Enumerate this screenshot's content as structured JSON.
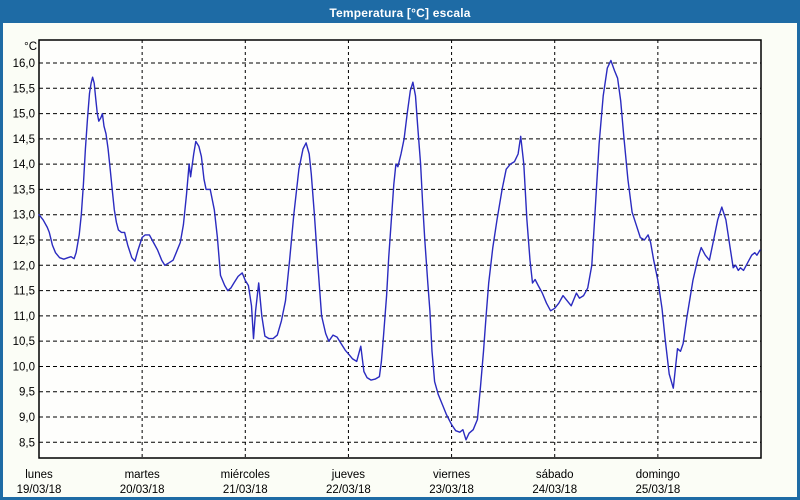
{
  "window": {
    "title": "Temperatura [°C] escala"
  },
  "colors": {
    "titlebar": "#1E6BA5",
    "border": "#1E6BA5",
    "title_text": "#FFFFFF",
    "panel_background": "#FBFDF6",
    "plot_background": "#FEFEFC",
    "grid": "#000000",
    "axis_text": "#000000",
    "line": "#2B2BC0"
  },
  "chart_data": {
    "type": "line",
    "title": "Temperatura [°C] escala",
    "ylabel": "°C",
    "xlabel": "",
    "ylim": [
      8.5,
      16.0
    ],
    "grid": true,
    "legend": "none",
    "decimal_separator": ",",
    "y_ticks": [
      {
        "value": 16.0,
        "label": "16,0"
      },
      {
        "value": 15.5,
        "label": "15,5"
      },
      {
        "value": 15.0,
        "label": "15,0"
      },
      {
        "value": 14.5,
        "label": "14,5"
      },
      {
        "value": 14.0,
        "label": "14,0"
      },
      {
        "value": 13.5,
        "label": "13,5"
      },
      {
        "value": 13.0,
        "label": "13,0"
      },
      {
        "value": 12.5,
        "label": "12,5"
      },
      {
        "value": 12.0,
        "label": "12,0"
      },
      {
        "value": 11.5,
        "label": "11,5"
      },
      {
        "value": 11.0,
        "label": "11,0"
      },
      {
        "value": 10.5,
        "label": "10,5"
      },
      {
        "value": 10.0,
        "label": "10,0"
      },
      {
        "value": 9.5,
        "label": "9,5"
      },
      {
        "value": 9.0,
        "label": "9,0"
      },
      {
        "value": 8.5,
        "label": "8,5"
      }
    ],
    "x_days": [
      {
        "name": "lunes",
        "date": "19/03/18"
      },
      {
        "name": "martes",
        "date": "20/03/18"
      },
      {
        "name": "miércoles",
        "date": "21/03/18"
      },
      {
        "name": "jueves",
        "date": "22/03/18"
      },
      {
        "name": "viernes",
        "date": "23/03/18"
      },
      {
        "name": "sábado",
        "date": "24/03/18"
      },
      {
        "name": "domingo",
        "date": "25/03/18"
      }
    ],
    "series": [
      {
        "name": "Temperatura",
        "unit": "°C",
        "points": [
          [
            0.0,
            13.0
          ],
          [
            0.04,
            12.9
          ],
          [
            0.08,
            12.75
          ],
          [
            0.1,
            12.65
          ],
          [
            0.13,
            12.4
          ],
          [
            0.16,
            12.25
          ],
          [
            0.2,
            12.15
          ],
          [
            0.24,
            12.12
          ],
          [
            0.28,
            12.15
          ],
          [
            0.31,
            12.17
          ],
          [
            0.34,
            12.13
          ],
          [
            0.36,
            12.25
          ],
          [
            0.39,
            12.6
          ],
          [
            0.41,
            13.0
          ],
          [
            0.43,
            13.6
          ],
          [
            0.45,
            14.3
          ],
          [
            0.47,
            14.9
          ],
          [
            0.49,
            15.4
          ],
          [
            0.505,
            15.6
          ],
          [
            0.52,
            15.72
          ],
          [
            0.535,
            15.6
          ],
          [
            0.55,
            15.3
          ],
          [
            0.565,
            15.0
          ],
          [
            0.58,
            14.85
          ],
          [
            0.6,
            14.92
          ],
          [
            0.615,
            15.0
          ],
          [
            0.63,
            14.75
          ],
          [
            0.65,
            14.6
          ],
          [
            0.67,
            14.3
          ],
          [
            0.69,
            13.9
          ],
          [
            0.71,
            13.5
          ],
          [
            0.73,
            13.1
          ],
          [
            0.75,
            12.85
          ],
          [
            0.77,
            12.7
          ],
          [
            0.8,
            12.65
          ],
          [
            0.83,
            12.65
          ],
          [
            0.86,
            12.4
          ],
          [
            0.9,
            12.15
          ],
          [
            0.93,
            12.08
          ],
          [
            0.96,
            12.3
          ],
          [
            1.0,
            12.55
          ],
          [
            1.03,
            12.6
          ],
          [
            1.07,
            12.6
          ],
          [
            1.11,
            12.45
          ],
          [
            1.15,
            12.3
          ],
          [
            1.19,
            12.1
          ],
          [
            1.22,
            12.0
          ],
          [
            1.26,
            12.05
          ],
          [
            1.3,
            12.1
          ],
          [
            1.33,
            12.25
          ],
          [
            1.37,
            12.45
          ],
          [
            1.4,
            12.8
          ],
          [
            1.43,
            13.4
          ],
          [
            1.455,
            14.0
          ],
          [
            1.47,
            13.75
          ],
          [
            1.5,
            14.2
          ],
          [
            1.52,
            14.45
          ],
          [
            1.55,
            14.35
          ],
          [
            1.575,
            14.15
          ],
          [
            1.6,
            13.7
          ],
          [
            1.62,
            13.5
          ],
          [
            1.66,
            13.5
          ],
          [
            1.7,
            13.1
          ],
          [
            1.73,
            12.55
          ],
          [
            1.76,
            11.8
          ],
          [
            1.8,
            11.6
          ],
          [
            1.83,
            11.5
          ],
          [
            1.86,
            11.55
          ],
          [
            1.89,
            11.65
          ],
          [
            1.93,
            11.78
          ],
          [
            1.97,
            11.85
          ],
          [
            2.0,
            11.7
          ],
          [
            2.03,
            11.6
          ],
          [
            2.06,
            11.2
          ],
          [
            2.08,
            10.55
          ],
          [
            2.1,
            11.1
          ],
          [
            2.13,
            11.65
          ],
          [
            2.16,
            11.0
          ],
          [
            2.19,
            10.6
          ],
          [
            2.23,
            10.55
          ],
          [
            2.27,
            10.55
          ],
          [
            2.31,
            10.62
          ],
          [
            2.35,
            10.9
          ],
          [
            2.39,
            11.3
          ],
          [
            2.43,
            12.1
          ],
          [
            2.47,
            13.0
          ],
          [
            2.52,
            13.9
          ],
          [
            2.56,
            14.3
          ],
          [
            2.59,
            14.42
          ],
          [
            2.62,
            14.2
          ],
          [
            2.64,
            13.8
          ],
          [
            2.67,
            13.0
          ],
          [
            2.7,
            12.1
          ],
          [
            2.74,
            11.0
          ],
          [
            2.78,
            10.65
          ],
          [
            2.81,
            10.5
          ],
          [
            2.85,
            10.62
          ],
          [
            2.89,
            10.58
          ],
          [
            2.93,
            10.45
          ],
          [
            2.97,
            10.32
          ],
          [
            3.0,
            10.25
          ],
          [
            3.04,
            10.15
          ],
          [
            3.08,
            10.1
          ],
          [
            3.12,
            10.4
          ],
          [
            3.15,
            9.9
          ],
          [
            3.18,
            9.78
          ],
          [
            3.22,
            9.73
          ],
          [
            3.26,
            9.75
          ],
          [
            3.3,
            9.8
          ],
          [
            3.32,
            10.1
          ],
          [
            3.34,
            10.6
          ],
          [
            3.37,
            11.4
          ],
          [
            3.39,
            12.15
          ],
          [
            3.42,
            13.0
          ],
          [
            3.44,
            13.6
          ],
          [
            3.46,
            14.0
          ],
          [
            3.48,
            13.95
          ],
          [
            3.51,
            14.2
          ],
          [
            3.54,
            14.5
          ],
          [
            3.57,
            15.0
          ],
          [
            3.6,
            15.45
          ],
          [
            3.625,
            15.62
          ],
          [
            3.65,
            15.35
          ],
          [
            3.67,
            14.8
          ],
          [
            3.7,
            14.0
          ],
          [
            3.72,
            13.2
          ],
          [
            3.74,
            12.5
          ],
          [
            3.77,
            11.65
          ],
          [
            3.79,
            11.1
          ],
          [
            3.81,
            10.3
          ],
          [
            3.835,
            9.7
          ],
          [
            3.87,
            9.45
          ],
          [
            3.91,
            9.25
          ],
          [
            3.95,
            9.05
          ],
          [
            4.0,
            8.85
          ],
          [
            4.04,
            8.73
          ],
          [
            4.08,
            8.7
          ],
          [
            4.11,
            8.75
          ],
          [
            4.14,
            8.55
          ],
          [
            4.17,
            8.68
          ],
          [
            4.21,
            8.75
          ],
          [
            4.25,
            8.95
          ],
          [
            4.28,
            9.6
          ],
          [
            4.31,
            10.3
          ],
          [
            4.335,
            11.0
          ],
          [
            4.36,
            11.65
          ],
          [
            4.4,
            12.35
          ],
          [
            4.44,
            12.9
          ],
          [
            4.49,
            13.5
          ],
          [
            4.53,
            13.9
          ],
          [
            4.57,
            14.0
          ],
          [
            4.61,
            14.05
          ],
          [
            4.645,
            14.2
          ],
          [
            4.67,
            14.55
          ],
          [
            4.7,
            14.0
          ],
          [
            4.73,
            12.9
          ],
          [
            4.76,
            12.1
          ],
          [
            4.785,
            11.65
          ],
          [
            4.81,
            11.72
          ],
          [
            4.84,
            11.6
          ],
          [
            4.88,
            11.45
          ],
          [
            4.92,
            11.25
          ],
          [
            4.96,
            11.1
          ],
          [
            5.0,
            11.15
          ],
          [
            5.04,
            11.25
          ],
          [
            5.08,
            11.4
          ],
          [
            5.12,
            11.3
          ],
          [
            5.16,
            11.2
          ],
          [
            5.21,
            11.45
          ],
          [
            5.24,
            11.35
          ],
          [
            5.28,
            11.4
          ],
          [
            5.32,
            11.55
          ],
          [
            5.36,
            12.0
          ],
          [
            5.39,
            13.0
          ],
          [
            5.43,
            14.4
          ],
          [
            5.47,
            15.35
          ],
          [
            5.51,
            15.9
          ],
          [
            5.545,
            16.05
          ],
          [
            5.58,
            15.85
          ],
          [
            5.61,
            15.7
          ],
          [
            5.64,
            15.25
          ],
          [
            5.67,
            14.55
          ],
          [
            5.71,
            13.7
          ],
          [
            5.75,
            13.05
          ],
          [
            5.79,
            12.8
          ],
          [
            5.83,
            12.55
          ],
          [
            5.87,
            12.5
          ],
          [
            5.905,
            12.6
          ],
          [
            5.93,
            12.45
          ],
          [
            5.96,
            12.1
          ],
          [
            6.0,
            11.7
          ],
          [
            6.04,
            11.15
          ],
          [
            6.07,
            10.55
          ],
          [
            6.11,
            9.85
          ],
          [
            6.15,
            9.57
          ],
          [
            6.19,
            10.35
          ],
          [
            6.22,
            10.3
          ],
          [
            6.245,
            10.45
          ],
          [
            6.28,
            10.95
          ],
          [
            6.34,
            11.7
          ],
          [
            6.39,
            12.15
          ],
          [
            6.42,
            12.35
          ],
          [
            6.46,
            12.2
          ],
          [
            6.5,
            12.1
          ],
          [
            6.54,
            12.5
          ],
          [
            6.58,
            12.9
          ],
          [
            6.62,
            13.15
          ],
          [
            6.66,
            12.9
          ],
          [
            6.7,
            12.35
          ],
          [
            6.73,
            11.95
          ],
          [
            6.755,
            12.0
          ],
          [
            6.78,
            11.9
          ],
          [
            6.8,
            11.95
          ],
          [
            6.83,
            11.9
          ],
          [
            6.87,
            12.05
          ],
          [
            6.91,
            12.2
          ],
          [
            6.94,
            12.25
          ],
          [
            6.96,
            12.2
          ],
          [
            6.99,
            12.3
          ]
        ]
      }
    ]
  }
}
